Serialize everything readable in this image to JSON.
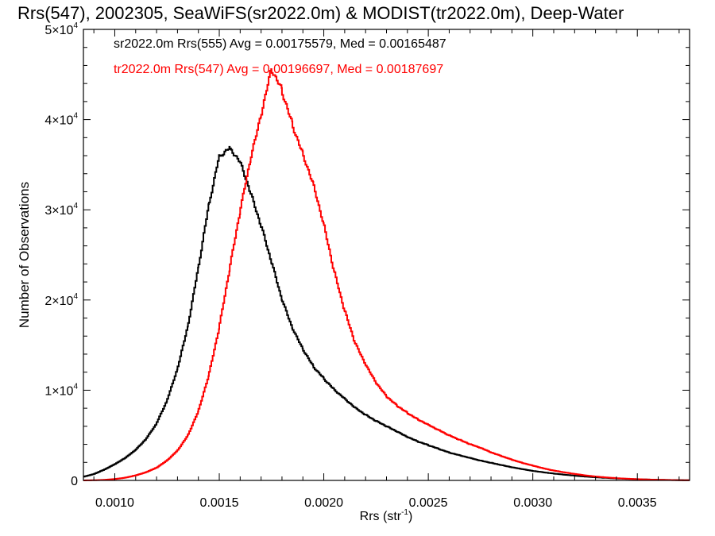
{
  "chart_data": {
    "type": "line",
    "title": "Rrs(547), 2002305, SeaWiFS(sr2022.0m) & MODIST(tr2022.0m), Deep-Water",
    "xlabel": "Rrs (str",
    "xlabel_sup": "-1",
    "xlabel_close": ")",
    "ylabel": "Number of Observations",
    "xlim": [
      0.00085,
      0.00375
    ],
    "ylim": [
      0,
      50000
    ],
    "grid": false,
    "legend_position": "top-left",
    "x_ticks": [
      {
        "value": 0.001,
        "label": "0.0010"
      },
      {
        "value": 0.0015,
        "label": "0.0015"
      },
      {
        "value": 0.002,
        "label": "0.0020"
      },
      {
        "value": 0.0025,
        "label": "0.0025"
      },
      {
        "value": 0.003,
        "label": "0.0030"
      },
      {
        "value": 0.0035,
        "label": "0.0035"
      }
    ],
    "y_ticks": [
      {
        "value": 0,
        "mant": "0",
        "exp": ""
      },
      {
        "value": 10000,
        "mant": "1×10",
        "exp": "4"
      },
      {
        "value": 20000,
        "mant": "2×10",
        "exp": "4"
      },
      {
        "value": 30000,
        "mant": "3×10",
        "exp": "4"
      },
      {
        "value": 40000,
        "mant": "4×10",
        "exp": "4"
      },
      {
        "value": 50000,
        "mant": "5×10",
        "exp": "4"
      }
    ],
    "series": [
      {
        "legend_text": "sr2022.0m Rrs(555) Avg = 0.00175579, Med = 0.00165487",
        "color": "#000000",
        "x": [
          0.00085,
          0.0009,
          0.00095,
          0.001,
          0.00105,
          0.0011,
          0.00115,
          0.0012,
          0.00125,
          0.0013,
          0.00135,
          0.0014,
          0.00145,
          0.0015,
          0.00155,
          0.0016,
          0.00165,
          0.0017,
          0.00175,
          0.0018,
          0.00185,
          0.0019,
          0.00195,
          0.002,
          0.00205,
          0.0021,
          0.00215,
          0.0022,
          0.00225,
          0.0023,
          0.00235,
          0.0024,
          0.00245,
          0.0025,
          0.00255,
          0.0026,
          0.00265,
          0.0027,
          0.00275,
          0.0028,
          0.00285,
          0.0029,
          0.00295,
          0.003,
          0.00305,
          0.0031,
          0.00315,
          0.0032,
          0.00325,
          0.0033,
          0.00335,
          0.0034,
          0.00345,
          0.0035,
          0.00355,
          0.0036,
          0.00365,
          0.0037,
          0.00375
        ],
        "y": [
          400,
          700,
          1200,
          1800,
          2500,
          3400,
          4600,
          6300,
          8800,
          12300,
          17000,
          23500,
          30500,
          36000,
          37000,
          35500,
          32000,
          28300,
          24200,
          20000,
          16800,
          14500,
          12600,
          11300,
          10100,
          9100,
          8100,
          7300,
          6600,
          6000,
          5400,
          4800,
          4300,
          3900,
          3500,
          3100,
          2800,
          2500,
          2200,
          1950,
          1700,
          1450,
          1250,
          1050,
          900,
          760,
          640,
          530,
          430,
          350,
          280,
          220,
          170,
          130,
          95,
          70,
          50,
          35,
          25
        ]
      },
      {
        "legend_text": "tr2022.0m Rrs(547) Avg = 0.00196697, Med = 0.00187697",
        "color": "#ff0000",
        "x": [
          0.00085,
          0.0009,
          0.00095,
          0.001,
          0.00105,
          0.0011,
          0.00115,
          0.0012,
          0.00125,
          0.0013,
          0.00135,
          0.0014,
          0.00145,
          0.0015,
          0.00155,
          0.0016,
          0.00165,
          0.0017,
          0.00175,
          0.0018,
          0.00185,
          0.0019,
          0.00195,
          0.002,
          0.00205,
          0.0021,
          0.00215,
          0.0022,
          0.00225,
          0.0023,
          0.00235,
          0.0024,
          0.00245,
          0.0025,
          0.00255,
          0.0026,
          0.00265,
          0.0027,
          0.00275,
          0.0028,
          0.00285,
          0.0029,
          0.00295,
          0.003,
          0.00305,
          0.0031,
          0.00315,
          0.0032,
          0.00325,
          0.0033,
          0.00335,
          0.0034,
          0.00345,
          0.0035,
          0.00355,
          0.0036,
          0.00365,
          0.0037,
          0.00375
        ],
        "y": [
          0,
          20,
          60,
          150,
          300,
          550,
          900,
          1400,
          2200,
          3300,
          5000,
          7700,
          11700,
          17000,
          23500,
          29800,
          35500,
          40300,
          45500,
          43200,
          39500,
          36300,
          33000,
          28500,
          23200,
          18800,
          15200,
          12800,
          10800,
          9300,
          8300,
          7500,
          6800,
          6200,
          5600,
          5000,
          4500,
          4000,
          3600,
          3100,
          2700,
          2300,
          1950,
          1650,
          1350,
          1100,
          900,
          720,
          560,
          430,
          330,
          250,
          190,
          140,
          100,
          70,
          45,
          30,
          20
        ]
      }
    ]
  }
}
